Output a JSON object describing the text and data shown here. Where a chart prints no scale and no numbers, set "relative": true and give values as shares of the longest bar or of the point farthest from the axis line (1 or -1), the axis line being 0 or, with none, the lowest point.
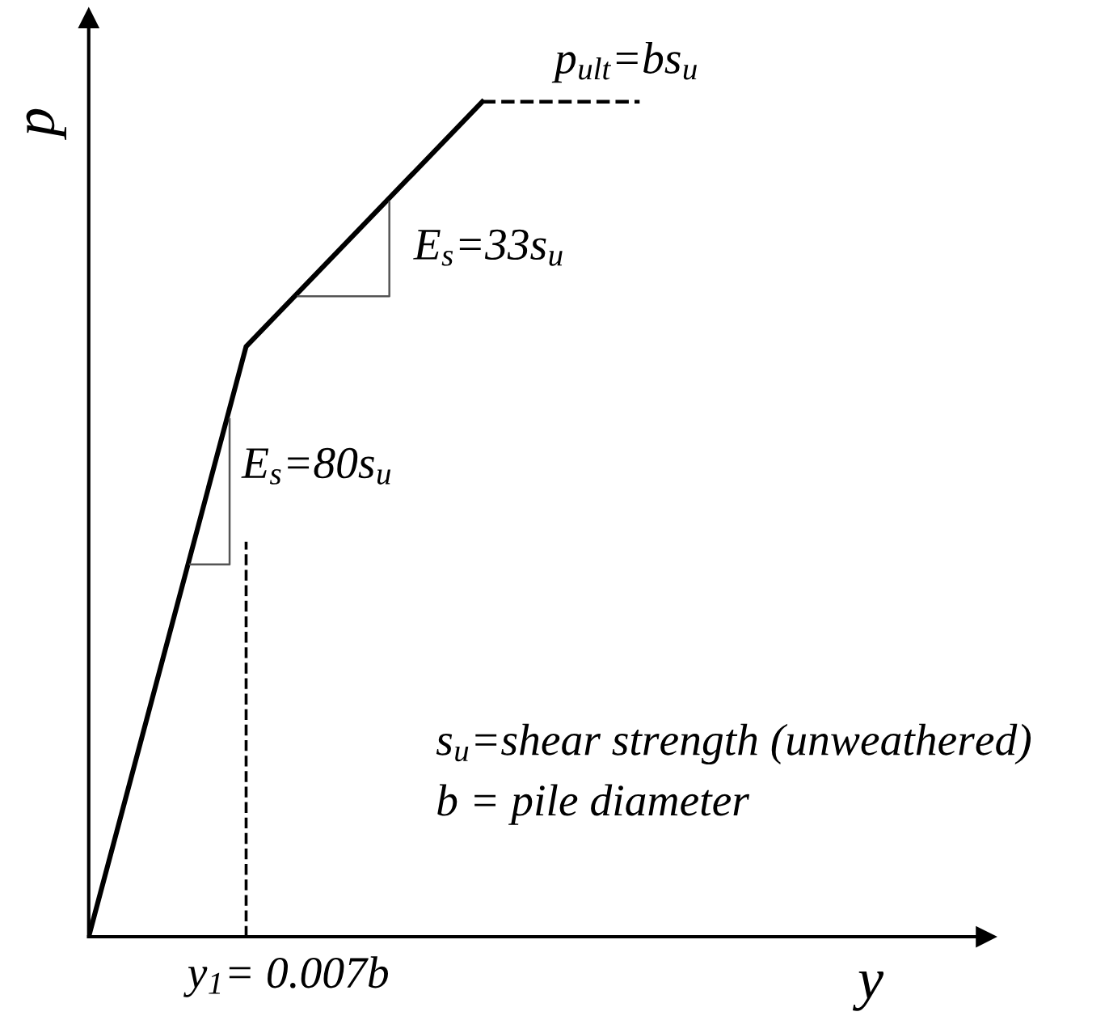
{
  "chart_data": {
    "type": "line",
    "relative": true,
    "xlabel": "y",
    "ylabel": "p",
    "legend": false,
    "marker": "none",
    "categories": [
      null,
      null,
      null,
      null,
      null,
      null,
      null,
      null,
      null,
      null,
      null,
      null
    ],
    "series": [
      {
        "color": "#000000",
        "line_style": "solid",
        "values": [
          0,
          null,
          0.707,
          null,
          null,
          1,
          null,
          null,
          null,
          null,
          null,
          null
        ]
      },
      {
        "color": "#000000",
        "line_style": "dashed",
        "values": [
          null,
          null,
          null,
          null,
          null,
          1,
          null,
          1,
          null,
          null,
          null,
          null
        ]
      }
    ],
    "annotations": [
      "E$_{s}$=80s$_{u}$",
      "E$_{s}$=33s$_{u}$",
      "p$_{ult}$=bs$_{u}$",
      "s$_{u}$=shear strength (unweathered)",
      "b = pile diameter",
      "y$_{1}$= 0.007b"
    ]
  }
}
